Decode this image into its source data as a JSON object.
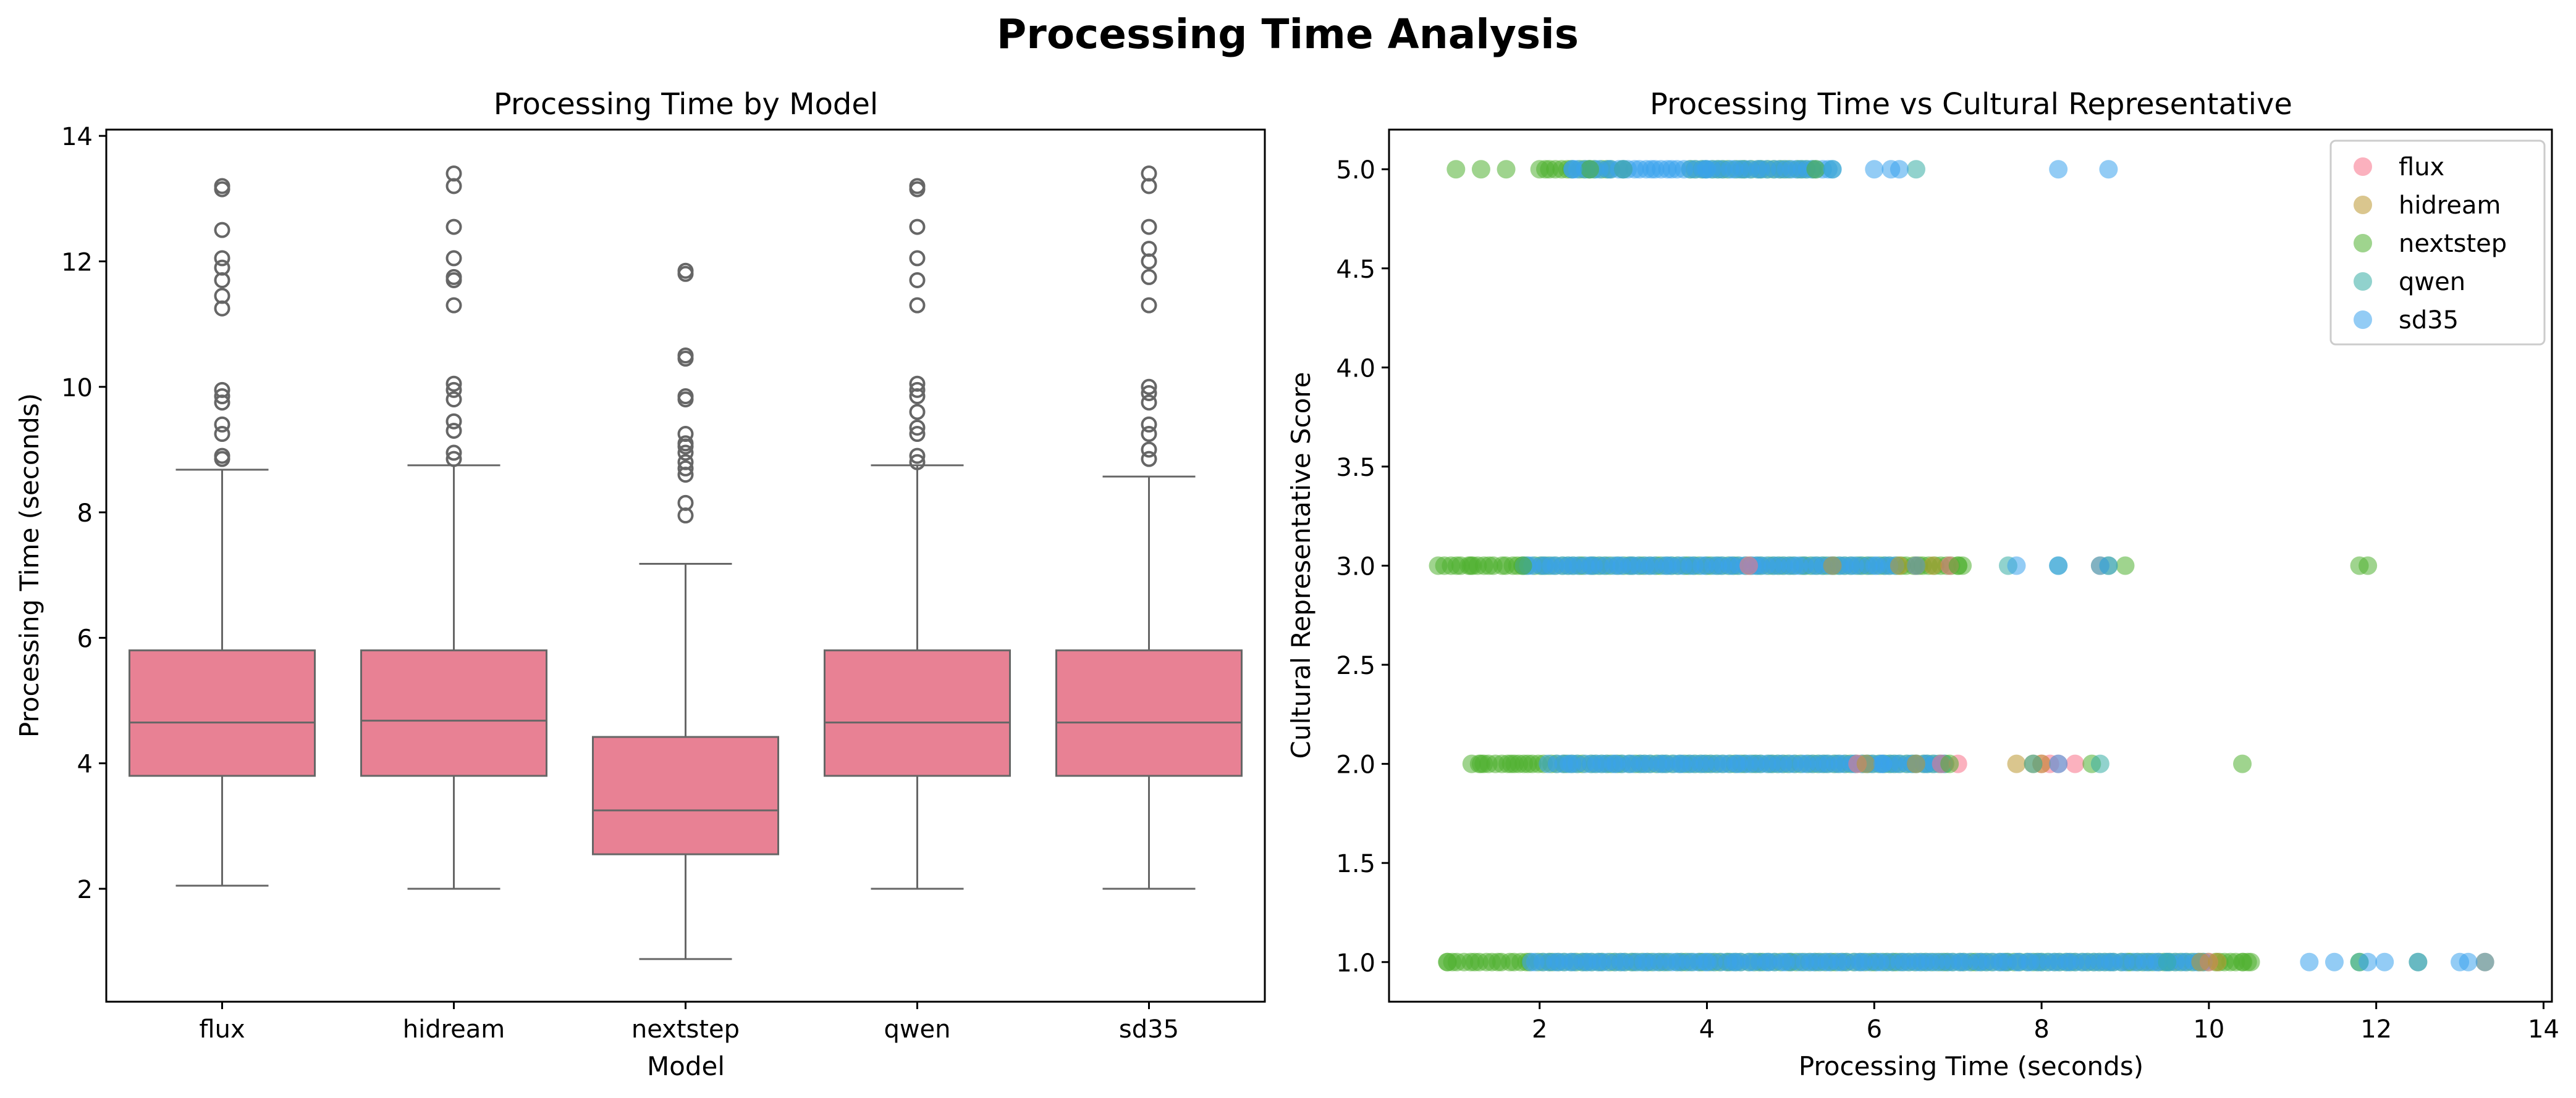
{
  "figure": {
    "title": "Processing Time Analysis"
  },
  "chart_data": [
    {
      "type": "box",
      "title": "Processing Time by Model",
      "xlabel": "Model",
      "ylabel": "Processing Time (seconds)",
      "ylim": [
        0.2,
        14.1
      ],
      "yticks": [
        2,
        4,
        6,
        8,
        10,
        12,
        14
      ],
      "categories": [
        "flux",
        "hidream",
        "nextstep",
        "qwen",
        "sd35"
      ],
      "box_color": "#e88194",
      "line_color": "#666666",
      "boxes": [
        {
          "name": "flux",
          "whislo": 2.05,
          "q1": 3.8,
          "med": 4.65,
          "q3": 5.8,
          "whishi": 8.68,
          "fliers": [
            8.85,
            8.9,
            9.25,
            9.4,
            9.75,
            9.85,
            9.95,
            11.25,
            11.45,
            11.7,
            11.9,
            12.05,
            12.5,
            13.15,
            13.2
          ]
        },
        {
          "name": "hidream",
          "whislo": 2.0,
          "q1": 3.8,
          "med": 4.68,
          "q3": 5.8,
          "whishi": 8.75,
          "fliers": [
            8.85,
            8.95,
            9.3,
            9.45,
            9.8,
            9.95,
            10.05,
            11.3,
            11.7,
            11.75,
            12.05,
            12.55,
            13.2,
            13.4
          ]
        },
        {
          "name": "nextstep",
          "whislo": 0.88,
          "q1": 2.55,
          "med": 3.25,
          "q3": 4.42,
          "whishi": 7.18,
          "fliers": [
            7.95,
            8.15,
            8.6,
            8.7,
            8.8,
            8.95,
            9.05,
            9.1,
            9.25,
            9.8,
            9.85,
            10.45,
            10.5,
            11.8,
            11.85
          ]
        },
        {
          "name": "qwen",
          "whislo": 2.0,
          "q1": 3.8,
          "med": 4.65,
          "q3": 5.8,
          "whishi": 8.75,
          "fliers": [
            8.8,
            8.9,
            9.25,
            9.35,
            9.6,
            9.85,
            9.95,
            10.05,
            11.3,
            11.7,
            12.05,
            12.55,
            13.15,
            13.2
          ]
        },
        {
          "name": "sd35",
          "whislo": 2.0,
          "q1": 3.8,
          "med": 4.65,
          "q3": 5.8,
          "whishi": 8.57,
          "fliers": [
            8.85,
            9.0,
            9.25,
            9.4,
            9.75,
            9.9,
            10.0,
            11.3,
            11.75,
            12.0,
            12.2,
            12.55,
            13.2,
            13.4
          ]
        }
      ]
    },
    {
      "type": "scatter",
      "title": "Processing Time vs Cultural Representative",
      "xlabel": "Processing Time (seconds)",
      "ylabel": "Cultural Representative Score",
      "xlim": [
        0.2,
        14.1
      ],
      "ylim": [
        0.8,
        5.2
      ],
      "xticks": [
        2,
        4,
        6,
        8,
        10,
        12,
        14
      ],
      "yticks": [
        1.0,
        1.5,
        2.0,
        2.5,
        3.0,
        3.5,
        4.0,
        4.5,
        5.0
      ],
      "legend_position": "top-right",
      "series": [
        {
          "name": "flux",
          "color": "#f77189",
          "points": [
            [
              8.2,
              2
            ],
            [
              8.0,
              2
            ],
            [
              8.4,
              2
            ],
            [
              8.1,
              2
            ],
            [
              6.8,
              2
            ],
            [
              6.5,
              3
            ],
            [
              5.8,
              2
            ],
            [
              10.0,
              1
            ],
            [
              13.3,
              1
            ],
            [
              6.9,
              3
            ],
            [
              7.0,
              2
            ],
            [
              4.5,
              3
            ]
          ]
        },
        {
          "name": "hidream",
          "color": "#bb9832",
          "points": [
            [
              7.9,
              2
            ],
            [
              8.0,
              2
            ],
            [
              7.7,
              2
            ],
            [
              6.5,
              2
            ],
            [
              6.3,
              3
            ],
            [
              10.1,
              1
            ],
            [
              6.7,
              3
            ],
            [
              5.9,
              2
            ],
            [
              9.9,
              1
            ],
            [
              5.5,
              3
            ],
            [
              8.7,
              3
            ]
          ]
        },
        {
          "name": "nextstep",
          "color": "#50b131",
          "points": [
            [
              1.0,
              5
            ],
            [
              1.3,
              5
            ],
            [
              1.6,
              5
            ],
            [
              2.6,
              5
            ],
            [
              3.0,
              5
            ],
            [
              5.3,
              5
            ],
            [
              1.2,
              3
            ],
            [
              1.8,
              3
            ],
            [
              7.0,
              3
            ],
            [
              8.8,
              3
            ],
            [
              9.0,
              3
            ],
            [
              11.8,
              3
            ],
            [
              11.9,
              3
            ],
            [
              1.3,
              2
            ],
            [
              1.7,
              2
            ],
            [
              6.9,
              2
            ],
            [
              8.6,
              2
            ],
            [
              10.4,
              2
            ],
            [
              0.9,
              1
            ],
            [
              10.4,
              1
            ],
            [
              10.5,
              1
            ],
            [
              12.5,
              1
            ],
            [
              11.8,
              1
            ]
          ]
        },
        {
          "name": "qwen",
          "color": "#36ada4",
          "points": [
            [
              6.5,
              5
            ],
            [
              5.5,
              5
            ],
            [
              7.9,
              2
            ],
            [
              8.7,
              2
            ],
            [
              7.6,
              3
            ],
            [
              8.2,
              3
            ],
            [
              9.5,
              1
            ],
            [
              11.8,
              1
            ],
            [
              13.3,
              1
            ],
            [
              6.5,
              3
            ]
          ]
        },
        {
          "name": "sd35",
          "color": "#3ba3ec",
          "points": [
            [
              2.4,
              5
            ],
            [
              3.0,
              5
            ],
            [
              4.0,
              5
            ],
            [
              5.5,
              5
            ],
            [
              6.2,
              5
            ],
            [
              6.3,
              5
            ],
            [
              8.2,
              5
            ],
            [
              8.8,
              5
            ],
            [
              6.0,
              5
            ],
            [
              7.7,
              3
            ],
            [
              8.2,
              3
            ],
            [
              8.7,
              3
            ],
            [
              8.8,
              3
            ],
            [
              8.2,
              2
            ],
            [
              6.1,
              2
            ],
            [
              2.1,
              2
            ],
            [
              11.9,
              1
            ],
            [
              12.5,
              1
            ],
            [
              12.1,
              1
            ],
            [
              13.1,
              1
            ],
            [
              13.0,
              1
            ],
            [
              11.2,
              1
            ],
            [
              11.5,
              1
            ]
          ]
        }
      ],
      "dense_ranges": [
        {
          "series": "nextstep",
          "y": 5.0,
          "x": [
            2.0,
            2.9
          ]
        },
        {
          "series": "nextstep",
          "y": 5.0,
          "x": [
            3.8,
            5.3
          ]
        },
        {
          "series": "sd35",
          "y": 5.0,
          "x": [
            2.4,
            5.5
          ]
        },
        {
          "series": "nextstep",
          "y": 3.0,
          "x": [
            0.8,
            7.1
          ]
        },
        {
          "series": "sd35",
          "y": 3.0,
          "x": [
            1.8,
            6.3
          ]
        },
        {
          "series": "nextstep",
          "y": 2.0,
          "x": [
            1.2,
            6.9
          ]
        },
        {
          "series": "sd35",
          "y": 2.0,
          "x": [
            2.2,
            6.9
          ]
        },
        {
          "series": "nextstep",
          "y": 1.0,
          "x": [
            0.9,
            10.5
          ]
        },
        {
          "series": "sd35",
          "y": 1.0,
          "x": [
            1.9,
            10.0
          ]
        }
      ]
    }
  ]
}
